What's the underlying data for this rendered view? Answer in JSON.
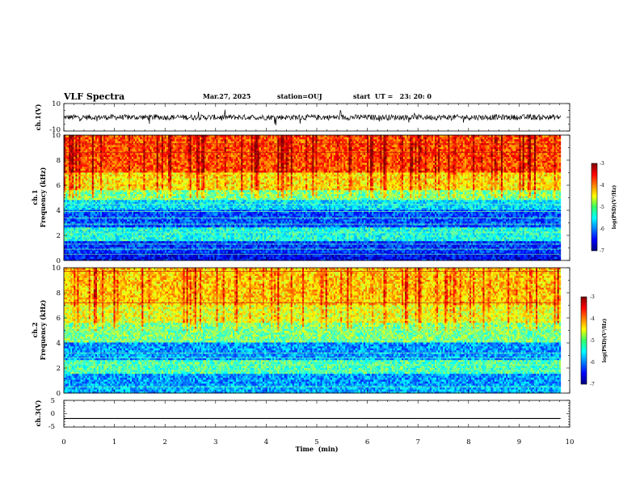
{
  "header": {
    "title": "VLF Spectra",
    "date": "Mar.27, 2025",
    "station": "station=OUJ",
    "start": "start  UT =   23: 20: 0"
  },
  "chart_data": [
    {
      "type": "line",
      "panel": "ch1_waveform",
      "ylabel": "ch.1(V)",
      "ylim": [
        -10,
        10
      ],
      "yticks": [
        "10",
        "-10"
      ],
      "xlim": [
        0,
        10
      ],
      "baseline": 0,
      "noise_band": [
        -2,
        2
      ],
      "spike_range": [
        -6,
        6
      ],
      "data_extent_min": 9.82
    },
    {
      "type": "heatmap",
      "panel": "ch1_spectrogram",
      "ylabel_line1": "ch.1",
      "ylabel_line2": "Frequency  (kHz)",
      "ylim": [
        0,
        10
      ],
      "yticks": [
        "0",
        "2",
        "4",
        "6",
        "8",
        "10"
      ],
      "xlim": [
        0,
        10
      ],
      "colorbar": {
        "label": "log(PSD)(V²/Hz)",
        "range": [
          -7,
          -3
        ],
        "ticks": [
          "-3",
          "-4",
          "-5",
          "-6",
          "-7"
        ]
      },
      "bands": [
        {
          "f": [
            0,
            0.6
          ],
          "v": -6.5
        },
        {
          "f": [
            0.6,
            1.6
          ],
          "v": -6.3
        },
        {
          "f": [
            1.6,
            2.6
          ],
          "v": -5.4
        },
        {
          "f": [
            2.6,
            4.0
          ],
          "v": -6.2
        },
        {
          "f": [
            4.0,
            4.8
          ],
          "v": -5.6
        },
        {
          "f": [
            4.8,
            5.6
          ],
          "v": -5.0
        },
        {
          "f": [
            5.6,
            7.0
          ],
          "v": -4.4
        },
        {
          "f": [
            7.0,
            10.0
          ],
          "v": -3.8
        }
      ],
      "spectral_lines_khz": [
        0.5,
        0.9,
        1.3,
        2.2,
        2.9,
        3.4,
        3.9,
        4.5,
        8.6,
        9.3
      ]
    },
    {
      "type": "heatmap",
      "panel": "ch2_spectrogram",
      "ylabel_line1": "ch.2",
      "ylabel_line2": "Frequency  (kHz)",
      "ylim": [
        0,
        10
      ],
      "yticks": [
        "0",
        "2",
        "4",
        "6",
        "8",
        "10"
      ],
      "xlim": [
        0,
        10
      ],
      "colorbar": {
        "label": "log(PSD)(V²/Hz)",
        "range": [
          -7,
          -3
        ],
        "ticks": [
          "-3",
          "-4",
          "-5",
          "-6",
          "-7"
        ]
      },
      "bands": [
        {
          "f": [
            0,
            0.6
          ],
          "v": -5.8
        },
        {
          "f": [
            0.6,
            1.6
          ],
          "v": -5.9
        },
        {
          "f": [
            1.6,
            2.6
          ],
          "v": -5.2
        },
        {
          "f": [
            2.6,
            4.0
          ],
          "v": -5.9
        },
        {
          "f": [
            4.0,
            5.6
          ],
          "v": -5.0
        },
        {
          "f": [
            5.6,
            7.0
          ],
          "v": -4.6
        },
        {
          "f": [
            7.0,
            10.0
          ],
          "v": -4.3
        }
      ],
      "spectral_lines_khz": [
        0.5,
        1.8,
        2.3,
        2.8,
        3.2,
        4.2,
        5.1,
        7.2,
        9.7
      ]
    },
    {
      "type": "line",
      "panel": "ch3_waveform",
      "ylabel": "ch.3(V)",
      "ylim": [
        -5,
        5
      ],
      "yticks": [
        "5",
        "0",
        "-5"
      ],
      "xlim": [
        0,
        10
      ],
      "xticks": [
        "0",
        "1",
        "2",
        "3",
        "4",
        "5",
        "6",
        "7",
        "8",
        "9",
        "10"
      ],
      "xlabel": "Time  (min)",
      "constant_value": -1.8,
      "data_extent_min": 9.82
    }
  ]
}
